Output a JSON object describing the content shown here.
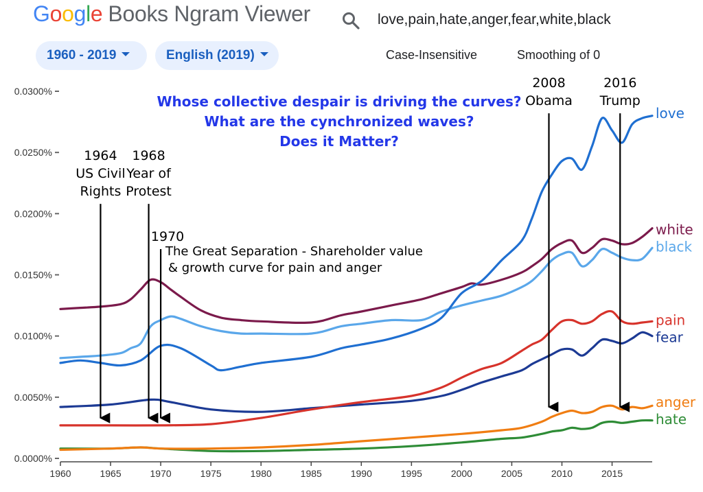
{
  "header": {
    "logo_letters": [
      {
        "ch": "G",
        "color": "#4285f4"
      },
      {
        "ch": "o",
        "color": "#ea4335"
      },
      {
        "ch": "o",
        "color": "#fbbc05"
      },
      {
        "ch": "g",
        "color": "#4285f4"
      },
      {
        "ch": "l",
        "color": "#34a853"
      },
      {
        "ch": "e",
        "color": "#ea4335"
      }
    ],
    "logo_rest": "Books Ngram Viewer",
    "query": "love,pain,hate,anger,fear,white,black",
    "year_range_label": "1960 - 2019",
    "corpus_label": "English (2019)",
    "case_label": "Case-Insensitive",
    "smoothing_label": "Smoothing of 0"
  },
  "chart_data": {
    "type": "line",
    "x_range": [
      1960,
      2019
    ],
    "y_range": [
      0,
      0.03
    ],
    "y_ticks": [
      {
        "value": 0.0,
        "label": "0.0000%"
      },
      {
        "value": 0.005,
        "label": "0.0050%"
      },
      {
        "value": 0.01,
        "label": "0.0100%"
      },
      {
        "value": 0.015,
        "label": "0.0150%"
      },
      {
        "value": 0.02,
        "label": "0.0200%"
      },
      {
        "value": 0.025,
        "label": "0.0250%"
      },
      {
        "value": 0.03,
        "label": "0.0300%"
      }
    ],
    "x_ticks": [
      1960,
      1965,
      1970,
      1975,
      1980,
      1985,
      1990,
      1995,
      2000,
      2005,
      2010,
      2015
    ],
    "series": [
      {
        "name": "love",
        "color": "#1f6fd1",
        "x": [
          1960,
          1962,
          1964,
          1966,
          1968,
          1970,
          1972,
          1975,
          1976,
          1978,
          1980,
          1985,
          1988,
          1990,
          1993,
          1996,
          1998,
          2000,
          2002,
          2004,
          2006,
          2007,
          2008,
          2009,
          2010,
          2011,
          2012,
          2013,
          2014,
          2015,
          2016,
          2017,
          2018,
          2019
        ],
        "y": [
          0.0078,
          0.008,
          0.0078,
          0.0076,
          0.008,
          0.0092,
          0.009,
          0.0076,
          0.0072,
          0.0075,
          0.0078,
          0.0083,
          0.009,
          0.0093,
          0.0098,
          0.0106,
          0.0115,
          0.0135,
          0.0145,
          0.0162,
          0.0178,
          0.0196,
          0.0218,
          0.0232,
          0.0243,
          0.0245,
          0.0236,
          0.0255,
          0.0278,
          0.0268,
          0.0258,
          0.0273,
          0.0278,
          0.028
        ]
      },
      {
        "name": "white",
        "color": "#7b1a4b",
        "x": [
          1960,
          1962,
          1964,
          1966,
          1967,
          1968,
          1969,
          1970,
          1971,
          1972,
          1974,
          1976,
          1978,
          1980,
          1985,
          1988,
          1990,
          1993,
          1996,
          1998,
          2000,
          2001,
          2002,
          2004,
          2006,
          2007,
          2008,
          2009,
          2010,
          2011,
          2012,
          2013,
          2014,
          2015,
          2016,
          2017,
          2018,
          2019
        ],
        "y": [
          0.0122,
          0.0123,
          0.0124,
          0.0126,
          0.013,
          0.0138,
          0.0146,
          0.0144,
          0.0138,
          0.0132,
          0.0121,
          0.0115,
          0.0113,
          0.0112,
          0.0111,
          0.0117,
          0.012,
          0.0125,
          0.013,
          0.0135,
          0.014,
          0.0143,
          0.0142,
          0.0146,
          0.0152,
          0.0157,
          0.0163,
          0.0171,
          0.0176,
          0.0178,
          0.0168,
          0.0172,
          0.0179,
          0.0178,
          0.0175,
          0.0176,
          0.0181,
          0.0188
        ]
      },
      {
        "name": "black",
        "color": "#5aa7ea",
        "x": [
          1960,
          1962,
          1964,
          1966,
          1967,
          1968,
          1969,
          1970,
          1971,
          1972,
          1974,
          1976,
          1978,
          1980,
          1985,
          1988,
          1990,
          1993,
          1996,
          1998,
          2000,
          2002,
          2004,
          2006,
          2007,
          2008,
          2009,
          2010,
          2011,
          2012,
          2013,
          2014,
          2015,
          2016,
          2017,
          2018,
          2019
        ],
        "y": [
          0.0082,
          0.0083,
          0.0084,
          0.0086,
          0.009,
          0.0094,
          0.0108,
          0.0113,
          0.0116,
          0.0114,
          0.0108,
          0.0104,
          0.0102,
          0.0102,
          0.0102,
          0.0108,
          0.011,
          0.0113,
          0.0113,
          0.012,
          0.0125,
          0.0129,
          0.0133,
          0.014,
          0.0145,
          0.0153,
          0.0162,
          0.0167,
          0.0168,
          0.0157,
          0.0162,
          0.0171,
          0.0168,
          0.0164,
          0.0162,
          0.0163,
          0.0172
        ]
      },
      {
        "name": "pain",
        "color": "#d7332b",
        "x": [
          1960,
          1965,
          1970,
          1975,
          1980,
          1985,
          1990,
          1995,
          1998,
          2000,
          2002,
          2004,
          2006,
          2007,
          2008,
          2009,
          2010,
          2011,
          2012,
          2013,
          2014,
          2015,
          2016,
          2017,
          2018,
          2019
        ],
        "y": [
          0.0027,
          0.0027,
          0.0027,
          0.0028,
          0.0033,
          0.004,
          0.0046,
          0.0051,
          0.0058,
          0.0066,
          0.0073,
          0.0078,
          0.0088,
          0.0093,
          0.0097,
          0.0105,
          0.0112,
          0.0113,
          0.011,
          0.0112,
          0.0118,
          0.012,
          0.0112,
          0.011,
          0.0111,
          0.0112
        ]
      },
      {
        "name": "fear",
        "color": "#1c3a94",
        "x": [
          1960,
          1965,
          1969,
          1971,
          1975,
          1980,
          1985,
          1990,
          1995,
          1998,
          2000,
          2002,
          2004,
          2006,
          2007,
          2008,
          2009,
          2010,
          2011,
          2012,
          2013,
          2014,
          2015,
          2016,
          2017,
          2018,
          2019
        ],
        "y": [
          0.0042,
          0.0044,
          0.0048,
          0.0046,
          0.004,
          0.0038,
          0.0041,
          0.0044,
          0.0047,
          0.0051,
          0.0056,
          0.0062,
          0.0067,
          0.0072,
          0.0077,
          0.0081,
          0.0085,
          0.0089,
          0.0089,
          0.0084,
          0.009,
          0.0097,
          0.0096,
          0.0094,
          0.0098,
          0.0103,
          0.01
        ]
      },
      {
        "name": "anger",
        "color": "#f07d12",
        "x": [
          1960,
          1965,
          1968,
          1970,
          1975,
          1980,
          1985,
          1990,
          1995,
          2000,
          2004,
          2006,
          2008,
          2009,
          2010,
          2011,
          2012,
          2013,
          2014,
          2015,
          2016,
          2017,
          2018,
          2019
        ],
        "y": [
          0.0007,
          0.0008,
          0.0009,
          0.0008,
          0.0008,
          0.0009,
          0.0011,
          0.0014,
          0.0017,
          0.002,
          0.0023,
          0.0025,
          0.003,
          0.0034,
          0.0037,
          0.0039,
          0.0037,
          0.0038,
          0.0042,
          0.0043,
          0.004,
          0.0042,
          0.0041,
          0.0043
        ]
      },
      {
        "name": "hate",
        "color": "#2e8c36",
        "x": [
          1960,
          1965,
          1968,
          1970,
          1975,
          1980,
          1985,
          1990,
          1995,
          2000,
          2004,
          2006,
          2008,
          2009,
          2010,
          2011,
          2012,
          2013,
          2014,
          2015,
          2016,
          2017,
          2018,
          2019
        ],
        "y": [
          0.0008,
          0.0008,
          0.0009,
          0.0008,
          0.0006,
          0.0006,
          0.0007,
          0.0008,
          0.001,
          0.0013,
          0.0016,
          0.0017,
          0.002,
          0.0022,
          0.0023,
          0.0025,
          0.0024,
          0.0025,
          0.0029,
          0.003,
          0.0029,
          0.003,
          0.0031,
          0.0031
        ]
      }
    ],
    "series_labels": [
      {
        "name": "love",
        "color": "#1f6fd1",
        "value": 0.0282
      },
      {
        "name": "white",
        "color": "#7b1a4b",
        "value": 0.0187
      },
      {
        "name": "black",
        "color": "#5aa7ea",
        "value": 0.0173
      },
      {
        "name": "pain",
        "color": "#d7332b",
        "value": 0.0113
      },
      {
        "name": "fear",
        "color": "#1c3a94",
        "value": 0.0099
      },
      {
        "name": "anger",
        "color": "#f07d12",
        "value": 0.0046
      },
      {
        "name": "hate",
        "color": "#2e8c36",
        "value": 0.0032
      }
    ],
    "title_lines": [
      "Whose collective despair is driving the curves?",
      "What are the cynchronized waves?",
      "Does it Matter?"
    ],
    "title_color": "#2337e8",
    "event_markers": [
      {
        "year": 1964,
        "lines": [
          "1964",
          "US Civil",
          "Rights"
        ],
        "arrow_from": 0.0208,
        "arrow_to": 0.0033
      },
      {
        "year": 1968.8,
        "lines": [
          "1968",
          "Year of",
          "Protest"
        ],
        "arrow_from": 0.0208,
        "arrow_to": 0.0033
      },
      {
        "year": 1970,
        "lines": [
          "1970"
        ],
        "arrow_from": 0.0171,
        "arrow_to": 0.0033
      },
      {
        "year": 2008.7,
        "lines": [
          "2008",
          "Obama"
        ],
        "arrow_from": 0.0282,
        "arrow_to": 0.0042
      },
      {
        "year": 2015.8,
        "lines": [
          "2016",
          "Trump"
        ],
        "arrow_from": 0.0282,
        "arrow_to": 0.0042
      }
    ],
    "annotation_lines": [
      "The Great Separation - Shareholder value",
      "& growth curve for pain and anger"
    ]
  }
}
